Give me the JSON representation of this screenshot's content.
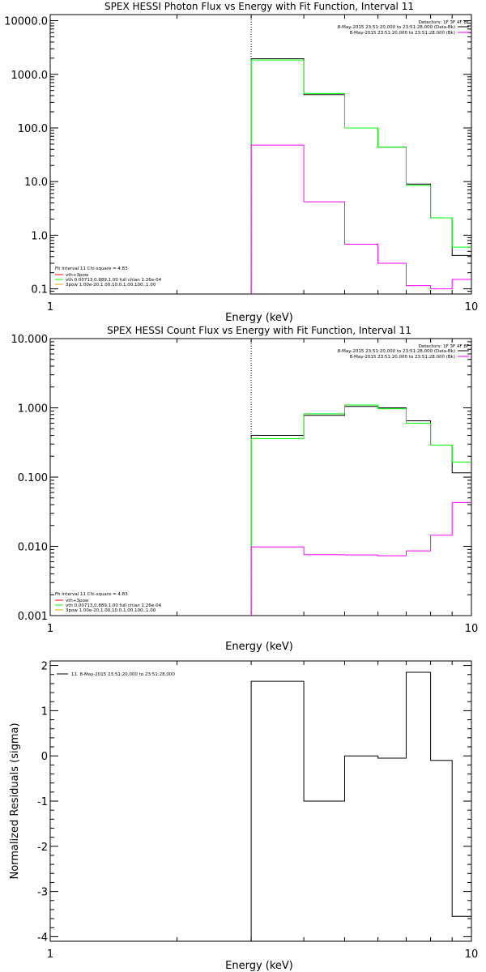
{
  "chart_data": [
    {
      "type": "line",
      "step": true,
      "title": "SPEX HESSI Photon Flux vs Energy with Fit Function, Interval 11",
      "xlabel": "Energy (keV)",
      "ylabel": "",
      "xscale": "log",
      "yscale": "log",
      "xlim": [
        1,
        10
      ],
      "ylim": [
        0.08,
        13000
      ],
      "xticks": [
        1,
        10
      ],
      "xtick_labels": [
        "1",
        "10"
      ],
      "yticks": [
        0.1,
        1,
        10,
        100,
        1000,
        10000
      ],
      "ytick_labels": [
        "0.1",
        "1.0",
        "10.0",
        "100.0",
        "1000.0",
        "10000.0"
      ],
      "bin_edges": [
        3.0,
        4.0,
        5.0,
        6.0,
        7.0,
        8.0,
        9.0,
        10.0
      ],
      "series": [
        {
          "name": "",
          "color": "#000000",
          "values": [
            1950,
            420,
            100,
            44,
            9.0,
            2.1,
            0.42
          ]
        },
        {
          "name": "",
          "color": "#00ff00",
          "values": [
            1850,
            440,
            100,
            44,
            8.5,
            2.1,
            0.6
          ]
        },
        {
          "name": "",
          "color": "#ff00ff",
          "values": [
            48,
            4.2,
            0.68,
            0.3,
            0.115,
            0.1,
            0.15
          ]
        }
      ],
      "vline_x": 3.0,
      "right_legend": {
        "header": "Detectors: 1F 3F 4F 8F",
        "entries": [
          {
            "label": "8-May-2015 23:51:20.000 to 23:51:28.000 (Data-Bk)",
            "color": "#000000"
          },
          {
            "label": "8-May-2015 23:51:20.000 to 23:51:28.000 (Bk)",
            "color": "#ff00ff"
          }
        ]
      },
      "left_legend": {
        "header": "Fit Interval 11   Chi-square = 4.83",
        "entries": [
          {
            "label": "vth+3pow",
            "color": "#ff0000"
          },
          {
            "label": "vth 0.00713,0.889,1.00   full chian 1.26e-04",
            "color": "#00ff00"
          },
          {
            "label": "3pow 1.00e-20,1.00,10.0,1.00,100.,1.00",
            "color": "#d4a800"
          }
        ]
      }
    },
    {
      "type": "line",
      "step": true,
      "title": "SPEX HESSI Count Flux vs Energy with Fit Function, Interval 11",
      "xlabel": "Energy (keV)",
      "ylabel": "",
      "xscale": "log",
      "yscale": "log",
      "xlim": [
        1,
        10
      ],
      "ylim": [
        0.001,
        10
      ],
      "xticks": [
        1,
        10
      ],
      "xtick_labels": [
        "1",
        "10"
      ],
      "yticks": [
        0.001,
        0.01,
        0.1,
        1,
        10
      ],
      "ytick_labels": [
        "0.001",
        "0.010",
        "0.100",
        "1.000",
        "10.000"
      ],
      "bin_edges": [
        3.0,
        4.0,
        5.0,
        6.0,
        7.0,
        8.0,
        9.0,
        10.0
      ],
      "series": [
        {
          "name": "",
          "color": "#000000",
          "values": [
            0.4,
            0.78,
            1.05,
            1.0,
            0.65,
            0.29,
            0.115
          ]
        },
        {
          "name": "",
          "color": "#00ff00",
          "values": [
            0.36,
            0.82,
            1.1,
            0.97,
            0.6,
            0.29,
            0.165
          ]
        },
        {
          "name": "",
          "color": "#ff00ff",
          "values": [
            0.0098,
            0.0076,
            0.0075,
            0.0073,
            0.0086,
            0.0145,
            0.043
          ]
        }
      ],
      "vline_x": 3.0,
      "right_legend": {
        "header": "Detectors: 1F 3F 4F 8F",
        "entries": [
          {
            "label": "8-May-2015 23:51:20.000 to 23:51:28.000 (Data-Bk)",
            "color": "#000000"
          },
          {
            "label": "8-May-2015 23:51:20.000 to 23:51:28.000 (Bk)",
            "color": "#ff00ff"
          }
        ]
      },
      "left_legend": {
        "header": "Fit Interval 11   Chi-square = 4.83",
        "entries": [
          {
            "label": "vth+3pow",
            "color": "#ff0000"
          },
          {
            "label": "vth 0.00713,0.889,1.00   full chian 1.26e-04",
            "color": "#00ff00"
          },
          {
            "label": "3pow 1.00e-20,1.00,10.0,1.00,100.,1.00",
            "color": "#d4a800"
          }
        ]
      }
    },
    {
      "type": "line",
      "step": true,
      "title": "",
      "xlabel": "Energy (keV)",
      "ylabel": "Normalized Residuals (sigma)",
      "xscale": "log",
      "yscale": "linear",
      "xlim": [
        1,
        10
      ],
      "ylim": [
        -4.1,
        2.1
      ],
      "xticks": [
        1,
        10
      ],
      "xtick_labels": [
        "1",
        "10"
      ],
      "yticks": [
        -4,
        -3,
        -2,
        -1,
        0,
        1,
        2
      ],
      "ytick_labels": [
        "-4",
        "-3",
        "-2",
        "-1",
        "0",
        "1",
        "2"
      ],
      "bin_edges": [
        3.0,
        4.0,
        5.0,
        6.0,
        7.0,
        8.0,
        9.0,
        10.0
      ],
      "series": [
        {
          "name": "",
          "color": "#000000",
          "values": [
            1.65,
            -1.0,
            0.0,
            -0.05,
            1.85,
            -0.1,
            -3.55
          ]
        }
      ],
      "legend": {
        "entries": [
          {
            "label": "11.  8-May-2015 23:51:20.000 to 23:51:28.000",
            "color": "#000000"
          }
        ]
      }
    }
  ]
}
